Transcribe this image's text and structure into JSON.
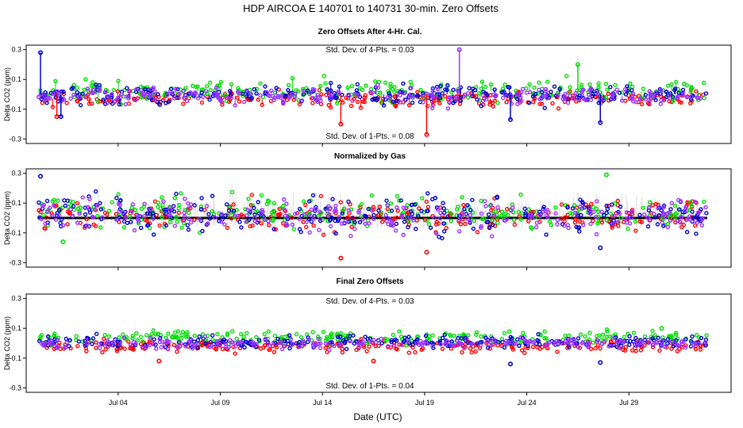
{
  "chart_data": {
    "type": "scatter",
    "title": "HDP   AIRCOA E   140701 to 140731   30-min. Zero Offsets",
    "xlabel": "Date (UTC)",
    "x_range_days": [
      -1.5,
      33
    ],
    "x_ticks": [
      {
        "label": "Jul 04",
        "day": 3
      },
      {
        "label": "Jul 09",
        "day": 8
      },
      {
        "label": "Jul 14",
        "day": 13
      },
      {
        "label": "Jul 19",
        "day": 18
      },
      {
        "label": "Jul 24",
        "day": 23
      },
      {
        "label": "Jul 29",
        "day": 28
      }
    ],
    "series_colors": {
      "gas1": "#ff0000",
      "gas2": "#00dd00",
      "gas3": "#0000cc",
      "gas4": "#9933ff",
      "normalized": "#000000"
    },
    "panels": [
      {
        "title": "Zero Offsets After 4-Hr. Cal.",
        "ylabel": "Delta CO2 (ppm)",
        "ylim": [
          -0.33,
          0.33
        ],
        "yticks": [
          -0.3,
          -0.1,
          0.1,
          0.3
        ],
        "ytick_labels": [
          "-0.3",
          "-0.1",
          "0.1",
          "0.3"
        ],
        "annotation_top": "Std. Dev. of 4-Pts. = 0.03",
        "annotation_bottom": "Std. Dev. of 1-Pts. = 0.08",
        "series": [
          {
            "name": "gas1",
            "color": "#ff0000",
            "base": -0.03,
            "spread": 0.045
          },
          {
            "name": "gas2",
            "color": "#00dd00",
            "base": 0.02,
            "spread": 0.06
          },
          {
            "name": "gas3",
            "color": "#0000cc",
            "base": 0.0,
            "spread": 0.055
          },
          {
            "name": "gas4",
            "color": "#9933ff",
            "base": -0.01,
            "spread": 0.045
          }
        ],
        "points": [
          {
            "series": "gas3",
            "day": -0.8,
            "value": 0.28
          },
          {
            "series": "gas3",
            "day": 26.6,
            "value": -0.19
          },
          {
            "series": "gas1",
            "day": 13.9,
            "value": -0.2
          },
          {
            "series": "gas1",
            "day": 18.1,
            "value": -0.27
          },
          {
            "series": "gas1",
            "day": 0.0,
            "value": -0.15
          },
          {
            "series": "gas3",
            "day": 0.2,
            "value": -0.15
          },
          {
            "series": "gas4",
            "day": 19.7,
            "value": 0.3
          },
          {
            "series": "gas3",
            "day": 22.2,
            "value": -0.17
          },
          {
            "series": "gas2",
            "day": 25.5,
            "value": 0.2
          }
        ]
      },
      {
        "title": "Normalized by Gas",
        "ylabel": "Delta CO2 (ppm)",
        "ylim": [
          -0.33,
          0.33
        ],
        "yticks": [
          -0.3,
          -0.1,
          0.1,
          0.3
        ],
        "ytick_labels": [
          "-0.3",
          "-0.1",
          "0.1",
          "0.3"
        ],
        "series": [
          {
            "name": "gas1",
            "color": "#ff0000",
            "base": 0.02,
            "spread": 0.09
          },
          {
            "name": "gas2",
            "color": "#00dd00",
            "base": 0.04,
            "spread": 0.09
          },
          {
            "name": "gas3",
            "color": "#0000cc",
            "base": 0.02,
            "spread": 0.1
          },
          {
            "name": "gas4",
            "color": "#9933ff",
            "base": 0.02,
            "spread": 0.09
          }
        ],
        "normalized_level": 0.0,
        "points": [
          {
            "series": "gas3",
            "day": -0.8,
            "value": 0.28
          },
          {
            "series": "gas1",
            "day": 13.9,
            "value": -0.27
          },
          {
            "series": "gas1",
            "day": 18.1,
            "value": -0.23
          },
          {
            "series": "gas2",
            "day": 26.9,
            "value": 0.29
          },
          {
            "series": "gas3",
            "day": 26.6,
            "value": -0.2
          },
          {
            "series": "gas2",
            "day": 0.3,
            "value": -0.16
          }
        ]
      },
      {
        "title": "Final Zero Offsets",
        "ylabel": "Delta CO2 (ppm)",
        "ylim": [
          -0.33,
          0.33
        ],
        "yticks": [
          -0.3,
          -0.1,
          0.1,
          0.3
        ],
        "ytick_labels": [
          "-0.3",
          "-0.1",
          "0.1",
          "0.3"
        ],
        "annotation_top": "Std. Dev. of 4-Pts. = 0.03",
        "annotation_bottom": "Std. Dev. of 1-Pts. = 0.04",
        "series": [
          {
            "name": "gas1",
            "color": "#ff0000",
            "base": -0.02,
            "spread": 0.035
          },
          {
            "name": "gas2",
            "color": "#00dd00",
            "base": 0.04,
            "spread": 0.035
          },
          {
            "name": "gas3",
            "color": "#0000cc",
            "base": 0.01,
            "spread": 0.035
          },
          {
            "name": "gas4",
            "color": "#9933ff",
            "base": 0.0,
            "spread": 0.03
          }
        ],
        "points": [
          {
            "series": "gas3",
            "day": 22.2,
            "value": -0.14
          },
          {
            "series": "gas3",
            "day": 26.6,
            "value": -0.13
          },
          {
            "series": "gas1",
            "day": 5.0,
            "value": -0.12
          },
          {
            "series": "gas1",
            "day": 15.5,
            "value": -0.12
          },
          {
            "series": "gas2",
            "day": 29.6,
            "value": 0.1
          }
        ]
      }
    ]
  }
}
